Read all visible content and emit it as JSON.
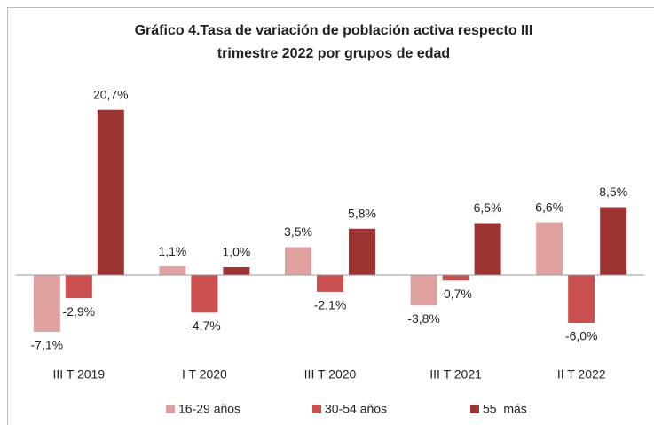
{
  "chart_data": {
    "type": "bar",
    "title": [
      "Gráfico 4.Tasa de variación de población activa respecto III",
      "trimestre 2022 por grupos de edad"
    ],
    "categories": [
      "III T 2019",
      "I T 2020",
      "III T 2020",
      "III T 2021",
      "II T 2022"
    ],
    "series": [
      {
        "name": "16-29 años",
        "color": "#dfa0a0",
        "values": [
          -7.1,
          1.1,
          3.5,
          -3.8,
          6.6
        ],
        "value_labels": [
          "-7,1%",
          "1,1%",
          "3,5%",
          "-3,8%",
          "6,6%"
        ]
      },
      {
        "name": "30-54 años",
        "color": "#c9504f",
        "values": [
          -2.9,
          -4.7,
          -2.1,
          -0.7,
          -6.0
        ],
        "value_labels": [
          "-2,9%",
          "-4,7%",
          "-2,1%",
          "-0,7%",
          "-6,0%"
        ]
      },
      {
        "name": "55  más",
        "color": "#9c3434",
        "values": [
          20.7,
          1.0,
          5.8,
          6.5,
          8.5
        ],
        "value_labels": [
          "20,7%",
          "1,0%",
          "5,8%",
          "6,5%",
          "8,5%"
        ]
      }
    ],
    "ylim": [
      -10,
      25
    ],
    "grid": false
  }
}
